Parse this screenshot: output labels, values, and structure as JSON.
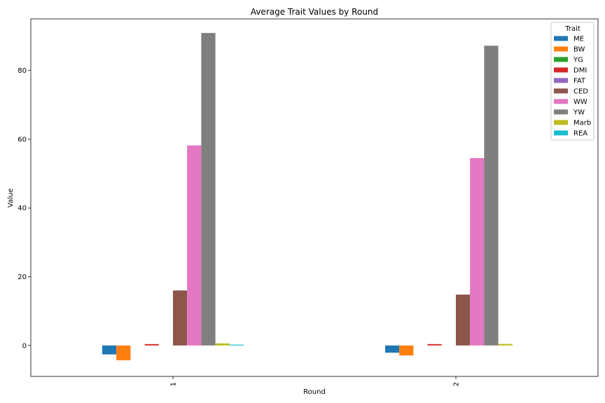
{
  "chart_data": {
    "type": "bar",
    "title": "Average Trait Values by Round",
    "xlabel": "Round",
    "ylabel": "Value",
    "categories": [
      "1",
      "2"
    ],
    "ylim": [
      -9,
      95
    ],
    "yticks": [
      0,
      20,
      40,
      60,
      80
    ],
    "grid": false,
    "legend": {
      "title": "Trait",
      "placement": "top-right"
    },
    "series": [
      {
        "name": "ME",
        "color": "#1f77b4",
        "values": [
          -2.6,
          -2.1
        ]
      },
      {
        "name": "BW",
        "color": "#ff7f0e",
        "values": [
          -4.3,
          -2.9
        ]
      },
      {
        "name": "YG",
        "color": "#2ca02c",
        "values": [
          0.0,
          0.0
        ]
      },
      {
        "name": "DMI",
        "color": "#d62728",
        "values": [
          0.4,
          0.4
        ]
      },
      {
        "name": "FAT",
        "color": "#9467bd",
        "values": [
          0.0,
          0.0
        ]
      },
      {
        "name": "CED",
        "color": "#8c564b",
        "values": [
          16.0,
          14.8
        ]
      },
      {
        "name": "WW",
        "color": "#e377c2",
        "values": [
          58.2,
          54.5
        ]
      },
      {
        "name": "YW",
        "color": "#7f7f7f",
        "values": [
          90.9,
          87.2
        ]
      },
      {
        "name": "Marb",
        "color": "#bcbd22",
        "values": [
          0.6,
          0.45
        ]
      },
      {
        "name": "REA",
        "color": "#17becf",
        "values": [
          0.25,
          0.0
        ]
      }
    ]
  }
}
